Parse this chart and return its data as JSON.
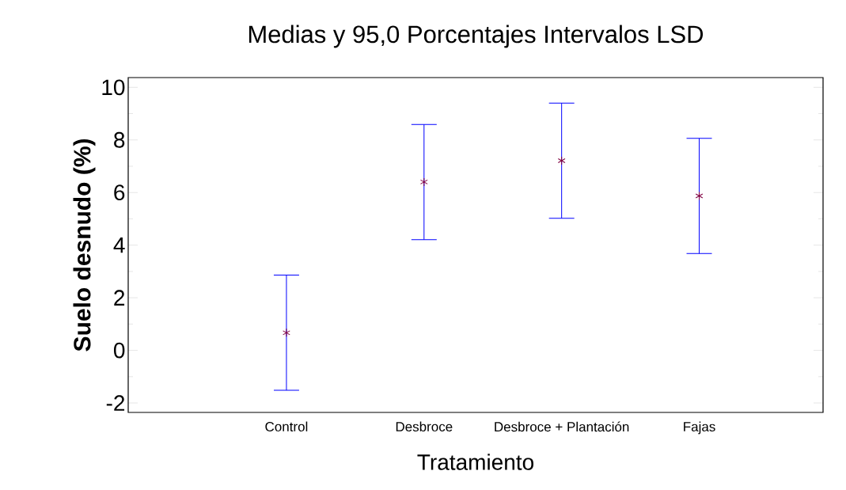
{
  "chart_data": {
    "type": "scatter",
    "title": "Medias y 95,0 Porcentajes Intervalos LSD",
    "xlabel": "Tratamiento",
    "ylabel": "Suelo desnudo (%)",
    "categories": [
      "Control",
      "Desbroce",
      "Desbroce + Plantación",
      "Fajas"
    ],
    "values": [
      0.67,
      6.4,
      7.21,
      5.87
    ],
    "errors": [
      2.19,
      2.19,
      2.19,
      2.19
    ],
    "color": "#800040",
    "marker": "cross",
    "ylim": [
      -2.36,
      10.37
    ],
    "yticks": [
      -2,
      0,
      2,
      4,
      6,
      8,
      10
    ]
  }
}
